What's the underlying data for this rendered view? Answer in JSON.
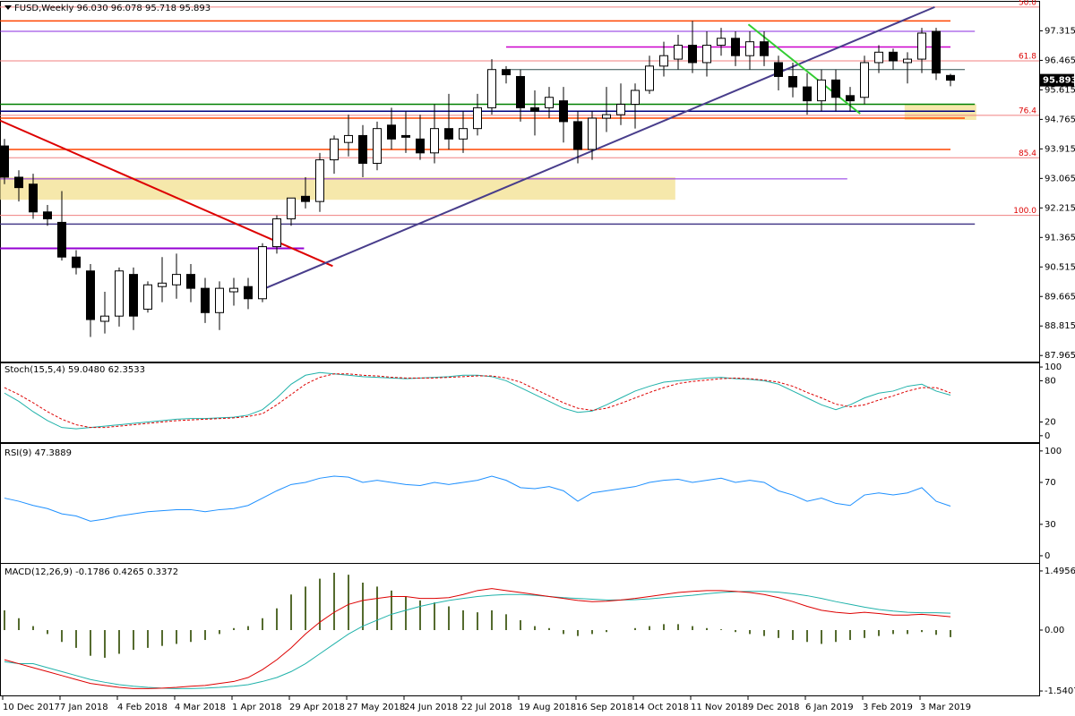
{
  "chart_data": [
    {
      "type": "candlestick",
      "title": "FUSD,Weekly",
      "ohlc_labels": [
        "96.030",
        "96.078",
        "95.718",
        "95.893"
      ],
      "categories": [
        "10 Dec 2017",
        null,
        null,
        null,
        "7 Jan 2018",
        null,
        null,
        null,
        "4 Feb 2018",
        null,
        null,
        null,
        "4 Mar 2018",
        null,
        null,
        null,
        "1 Apr 2018",
        null,
        null,
        null,
        "29 Apr 2018",
        null,
        null,
        null,
        "27 May 2018",
        null,
        null,
        null,
        "24 Jun 2018",
        null,
        null,
        null,
        "22 Jul 2018",
        null,
        null,
        null,
        "19 Aug 2018",
        null,
        null,
        null,
        "16 Sep 2018",
        null,
        null,
        null,
        "14 Oct 2018",
        null,
        null,
        null,
        "11 Nov 2018",
        null,
        null,
        null,
        "9 Dec 2018",
        null,
        null,
        null,
        "6 Jan 2019",
        null,
        null,
        null,
        "3 Feb 2019",
        null,
        null,
        null,
        "3 Mar 2019",
        null,
        null
      ],
      "open": [
        94.0,
        93.1,
        92.9,
        92.1,
        91.8,
        90.8,
        90.4,
        88.95,
        89.1,
        90.3,
        89.3,
        89.95,
        90.0,
        90.3,
        89.9,
        89.2,
        89.8,
        89.95,
        89.6,
        91.1,
        91.9,
        92.55,
        92.4,
        93.6,
        94.1,
        94.3,
        93.5,
        94.6,
        94.3,
        94.2,
        93.8,
        94.5,
        94.2,
        94.5,
        95.1,
        96.2,
        96.0,
        95.1,
        95.1,
        95.3,
        94.7,
        93.9,
        94.8,
        94.9,
        95.2,
        95.6,
        96.3,
        96.5,
        96.9,
        96.4,
        96.9,
        97.1,
        96.6,
        97.0,
        96.4,
        96.0,
        95.7,
        95.3,
        95.9,
        95.45,
        95.4,
        96.4,
        96.7,
        96.4,
        96.5,
        97.3,
        96.03
      ],
      "high": [
        94.2,
        93.3,
        93.2,
        92.3,
        92.7,
        91.0,
        90.6,
        89.8,
        90.5,
        90.5,
        90.1,
        90.8,
        90.9,
        90.6,
        90.2,
        90.1,
        90.2,
        90.2,
        91.2,
        92.0,
        92.5,
        93.1,
        93.8,
        94.3,
        94.9,
        94.6,
        94.7,
        95.1,
        95.0,
        94.9,
        95.2,
        95.5,
        95.0,
        95.5,
        96.5,
        96.3,
        96.2,
        95.6,
        95.7,
        95.7,
        95.0,
        95.0,
        95.7,
        95.8,
        95.8,
        96.6,
        97.0,
        97.2,
        97.6,
        97.3,
        97.4,
        97.3,
        97.3,
        97.3,
        96.6,
        96.4,
        96.1,
        96.2,
        96.2,
        95.7,
        96.6,
        96.9,
        96.8,
        96.7,
        97.4,
        97.4,
        96.078
      ],
      "low": [
        92.9,
        92.4,
        91.9,
        91.7,
        90.7,
        90.3,
        88.5,
        88.6,
        88.8,
        88.7,
        89.2,
        89.5,
        89.6,
        89.5,
        88.9,
        88.7,
        89.4,
        89.3,
        89.5,
        90.9,
        91.7,
        92.2,
        92.1,
        93.2,
        93.7,
        93.1,
        93.3,
        93.9,
        93.8,
        93.6,
        93.5,
        93.9,
        93.8,
        94.3,
        94.9,
        95.8,
        94.7,
        94.3,
        94.8,
        94.1,
        93.5,
        93.6,
        94.4,
        94.6,
        94.5,
        95.5,
        96.0,
        96.2,
        96.1,
        96.0,
        96.6,
        96.3,
        96.2,
        96.3,
        95.6,
        95.4,
        94.9,
        95.0,
        95.0,
        95.0,
        95.2,
        96.1,
        96.2,
        95.8,
        96.1,
        95.9,
        95.718
      ],
      "close": [
        93.1,
        92.8,
        92.1,
        91.9,
        90.8,
        90.5,
        89.0,
        89.1,
        90.4,
        89.1,
        90.0,
        90.05,
        90.3,
        89.9,
        89.2,
        89.9,
        89.9,
        89.6,
        91.1,
        91.9,
        92.5,
        92.4,
        93.6,
        94.2,
        94.3,
        93.5,
        94.5,
        94.2,
        94.25,
        93.8,
        94.5,
        94.2,
        94.5,
        95.1,
        96.2,
        96.05,
        95.1,
        95.0,
        95.4,
        94.7,
        93.9,
        94.8,
        94.9,
        95.2,
        95.6,
        96.3,
        96.6,
        96.9,
        96.4,
        96.9,
        97.1,
        96.6,
        97.0,
        96.6,
        96.0,
        95.7,
        95.3,
        95.9,
        95.4,
        95.3,
        96.4,
        96.7,
        96.45,
        96.5,
        97.25,
        96.1,
        95.893
      ],
      "up_color": "#ffffff",
      "down_color": "#000000",
      "ylim": [
        87.79,
        98.1
      ],
      "yticks": [
        97.315,
        96.465,
        95.615,
        94.765,
        93.915,
        93.065,
        92.215,
        91.365,
        90.515,
        89.665,
        88.815,
        87.965
      ],
      "fib": [
        {
          "label": "50.0",
          "value": 98.0
        },
        {
          "label": "61.8",
          "value": 96.45
        },
        {
          "label": "76.4",
          "value": 94.88
        },
        {
          "label": "85.4",
          "value": 93.66
        },
        {
          "label": "100.0",
          "value": 92.0
        }
      ],
      "zones": [
        {
          "x": [
            -0.3,
            46.8
          ],
          "y": [
            93.1,
            92.45
          ],
          "color": "#f5e49c"
        },
        {
          "x": [
            62.8,
            67.8
          ],
          "y": [
            95.2,
            94.75
          ],
          "color": "#f5e49c"
        }
      ],
      "lines": [
        {
          "x": [
            -0.3,
            66
          ],
          "y": [
            97.6,
            97.6
          ],
          "color": "#ff4500",
          "width": 1.5
        },
        {
          "x": [
            -0.3,
            67.7
          ],
          "y": [
            97.3,
            97.3
          ],
          "color": "#8a2be2",
          "width": 1
        },
        {
          "x": [
            35,
            66
          ],
          "y": [
            96.85,
            96.85
          ],
          "color": "#cc00cc",
          "width": 1.5
        },
        {
          "x": [
            35,
            67
          ],
          "y": [
            96.2,
            96.2
          ],
          "color": "#2f4f4f",
          "width": 1
        },
        {
          "x": [
            -0.3,
            67.7
          ],
          "y": [
            95.2,
            95.2
          ],
          "color": "#008000",
          "width": 1.5
        },
        {
          "x": [
            -0.3,
            67.7
          ],
          "y": [
            95.0,
            95.0
          ],
          "color": "#000080",
          "width": 1.5
        },
        {
          "x": [
            -0.3,
            67
          ],
          "y": [
            94.8,
            94.8
          ],
          "color": "#ff4500",
          "width": 1.5
        },
        {
          "x": [
            -0.3,
            66
          ],
          "y": [
            93.9,
            93.9
          ],
          "color": "#ff4500",
          "width": 1.5
        },
        {
          "x": [
            -0.3,
            58.8
          ],
          "y": [
            93.05,
            93.05
          ],
          "color": "#8a2be2",
          "width": 1
        },
        {
          "x": [
            -0.3,
            67.7
          ],
          "y": [
            91.75,
            91.75
          ],
          "color": "#483d8b",
          "width": 1.5
        },
        {
          "x": [
            -0.3,
            20.9
          ],
          "y": [
            91.05,
            91.05
          ],
          "color": "#9400d3",
          "width": 2
        },
        {
          "x": [
            -0.3,
            22.9
          ],
          "y": [
            94.73,
            90.54
          ],
          "color": "#dd0000",
          "width": 2
        },
        {
          "x": [
            17.9,
            64.9
          ],
          "y": [
            89.85,
            98.0
          ],
          "color": "#483d8b",
          "width": 2
        },
        {
          "x": [
            51.9,
            59.7
          ],
          "y": [
            97.5,
            94.93
          ],
          "color": "#32cd32",
          "width": 2
        }
      ]
    },
    {
      "type": "line",
      "title": "Stoch(15,5,4)",
      "value_labels": [
        "59.0480",
        "62.3533"
      ],
      "ylim": [
        -8,
        104
      ],
      "yticks": [
        100,
        80,
        20,
        0
      ],
      "series": [
        {
          "color": "#20b2aa",
          "dash": false,
          "values": [
            62,
            50,
            35,
            22,
            12,
            10,
            12,
            14,
            16,
            18,
            20,
            22,
            24,
            25,
            25,
            26,
            27,
            30,
            38,
            55,
            75,
            88,
            92,
            90,
            88,
            86,
            85,
            84,
            83,
            84,
            85,
            86,
            88,
            88,
            86,
            80,
            70,
            60,
            50,
            40,
            34,
            36,
            45,
            55,
            65,
            72,
            78,
            80,
            82,
            84,
            85,
            83,
            82,
            80,
            75,
            65,
            55,
            45,
            38,
            45,
            55,
            62,
            65,
            72,
            75,
            65,
            59.048
          ]
        },
        {
          "color": "#dd0000",
          "dash": true,
          "values": [
            70,
            60,
            48,
            35,
            24,
            16,
            12,
            12,
            14,
            16,
            18,
            20,
            22,
            23,
            24,
            25,
            26,
            28,
            32,
            45,
            60,
            75,
            85,
            90,
            90,
            88,
            87,
            85,
            84,
            84,
            84,
            85,
            86,
            87,
            87,
            84,
            78,
            68,
            58,
            48,
            40,
            37,
            40,
            47,
            55,
            63,
            70,
            76,
            79,
            81,
            83,
            84,
            83,
            81,
            78,
            72,
            63,
            55,
            46,
            42,
            45,
            52,
            58,
            65,
            70,
            70,
            62.3533
          ]
        }
      ]
    },
    {
      "type": "line",
      "title": "RSI(9)",
      "value_labels": [
        "47.3889"
      ],
      "ylim": [
        -6,
        105
      ],
      "yticks": [
        100,
        70,
        30,
        0
      ],
      "series": [
        {
          "color": "#1e90ff",
          "dash": false,
          "values": [
            55,
            52,
            48,
            45,
            40,
            38,
            33,
            35,
            38,
            40,
            42,
            43,
            44,
            44,
            42,
            44,
            45,
            48,
            55,
            62,
            68,
            70,
            74,
            76,
            75,
            70,
            72,
            70,
            68,
            67,
            70,
            68,
            70,
            72,
            76,
            72,
            65,
            64,
            66,
            62,
            52,
            60,
            62,
            64,
            66,
            70,
            72,
            73,
            70,
            72,
            74,
            70,
            72,
            70,
            62,
            58,
            52,
            55,
            50,
            48,
            58,
            60,
            58,
            60,
            65,
            52,
            47.3889
          ]
        }
      ]
    },
    {
      "type": "macd",
      "title": "MACD(12,26,9)",
      "value_labels": [
        "-0.1786",
        "0.4265",
        "0.3372"
      ],
      "ylim": [
        -1.63,
        1.63
      ],
      "yticks": [
        1.4956,
        {
          "value": 0,
          "label": "0.00"
        },
        -1.5407
      ],
      "histogram": {
        "color": "#556b2f",
        "values": [
          0.5,
          0.3,
          0.1,
          -0.1,
          -0.3,
          -0.45,
          -0.65,
          -0.7,
          -0.6,
          -0.5,
          -0.45,
          -0.4,
          -0.35,
          -0.3,
          -0.25,
          -0.1,
          0.05,
          0.1,
          0.3,
          0.55,
          0.9,
          1.1,
          1.3,
          1.45,
          1.4,
          1.2,
          1.1,
          1.0,
          0.85,
          0.75,
          0.7,
          0.6,
          0.5,
          0.45,
          0.5,
          0.4,
          0.25,
          0.1,
          0.05,
          -0.1,
          -0.15,
          -0.1,
          -0.05,
          0.0,
          0.05,
          0.1,
          0.15,
          0.15,
          0.1,
          0.05,
          0.02,
          -0.05,
          -0.1,
          -0.15,
          -0.2,
          -0.25,
          -0.3,
          -0.35,
          -0.3,
          -0.25,
          -0.2,
          -0.15,
          -0.1,
          -0.1,
          -0.05,
          -0.12,
          -0.1786
        ]
      },
      "series": [
        {
          "color": "#20b2aa",
          "dash": false,
          "values": [
            -0.8,
            -0.85,
            -0.85,
            -0.95,
            -1.05,
            -1.15,
            -1.25,
            -1.32,
            -1.38,
            -1.42,
            -1.45,
            -1.47,
            -1.48,
            -1.48,
            -1.47,
            -1.45,
            -1.42,
            -1.38,
            -1.3,
            -1.2,
            -1.05,
            -0.85,
            -0.6,
            -0.35,
            -0.1,
            0.1,
            0.25,
            0.4,
            0.5,
            0.6,
            0.68,
            0.75,
            0.8,
            0.85,
            0.88,
            0.9,
            0.9,
            0.88,
            0.85,
            0.82,
            0.8,
            0.78,
            0.76,
            0.76,
            0.77,
            0.79,
            0.82,
            0.85,
            0.88,
            0.92,
            0.95,
            0.97,
            0.98,
            0.98,
            0.96,
            0.92,
            0.87,
            0.8,
            0.72,
            0.65,
            0.58,
            0.52,
            0.48,
            0.45,
            0.44,
            0.44,
            0.4265
          ]
        },
        {
          "color": "#dd0000",
          "dash": false,
          "values": [
            -0.75,
            -0.85,
            -0.95,
            -1.05,
            -1.15,
            -1.25,
            -1.35,
            -1.4,
            -1.45,
            -1.48,
            -1.48,
            -1.47,
            -1.45,
            -1.42,
            -1.4,
            -1.35,
            -1.3,
            -1.2,
            -1.0,
            -0.75,
            -0.45,
            -0.1,
            0.2,
            0.45,
            0.65,
            0.75,
            0.8,
            0.85,
            0.85,
            0.8,
            0.8,
            0.82,
            0.9,
            1.0,
            1.05,
            1.0,
            0.95,
            0.9,
            0.85,
            0.8,
            0.75,
            0.72,
            0.73,
            0.76,
            0.8,
            0.85,
            0.9,
            0.95,
            0.98,
            1.0,
            1.0,
            0.98,
            0.95,
            0.9,
            0.82,
            0.72,
            0.6,
            0.5,
            0.45,
            0.42,
            0.45,
            0.42,
            0.38,
            0.38,
            0.4,
            0.37,
            0.3372
          ]
        }
      ]
    }
  ]
}
